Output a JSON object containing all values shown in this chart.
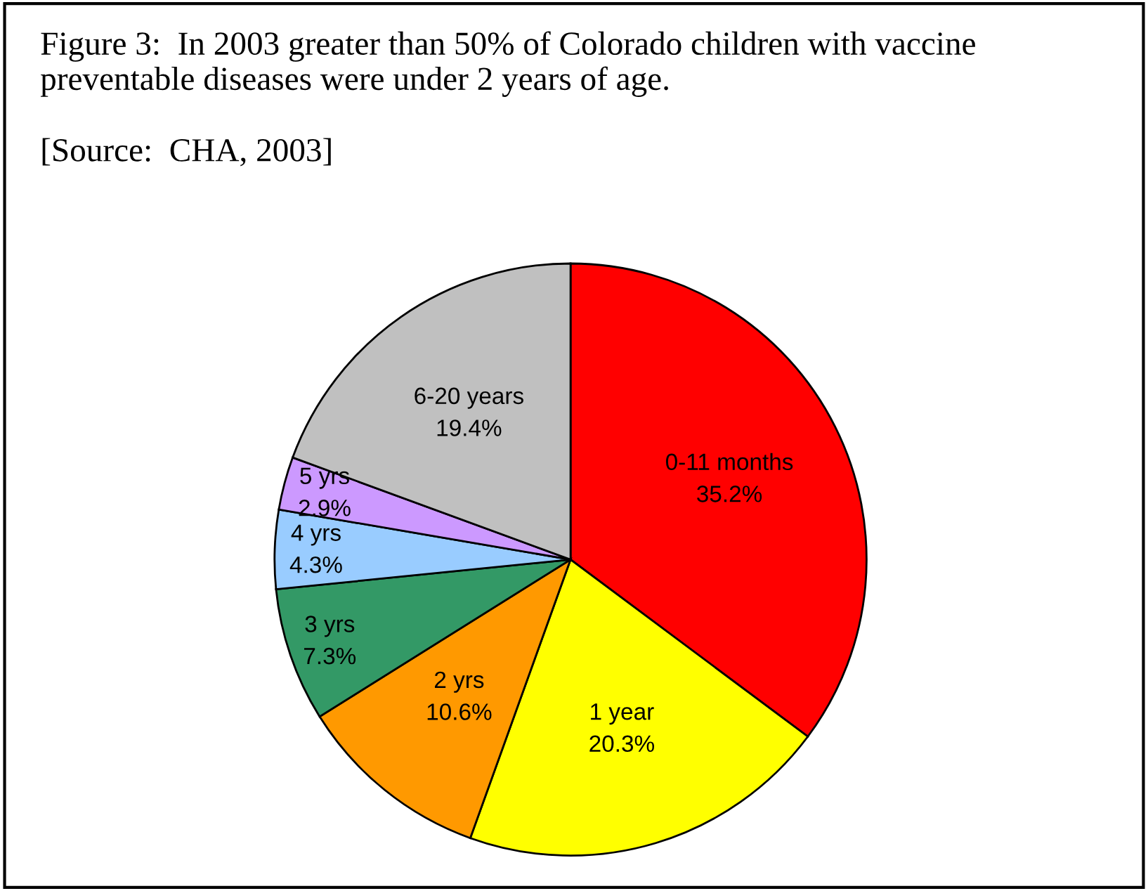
{
  "chart_data": {
    "type": "pie",
    "title": "Figure 3:  In 2003 greater than 50% of Colorado children with vaccine preventable diseases were under 2 years of age.",
    "annotations": [
      "[Source:  CHA, 2003]"
    ],
    "categories": [
      "0-11 months",
      "1 year",
      "2 yrs",
      "3 yrs",
      "4 yrs",
      "5 yrs",
      "6-20 years"
    ],
    "values": [
      35.2,
      20.3,
      10.6,
      7.3,
      4.3,
      2.9,
      19.4
    ],
    "value_labels": [
      "35.2%",
      "20.3%",
      "10.6%",
      "7.3%",
      "4.3%",
      "2.9%",
      "19.4%"
    ],
    "colors": [
      "#ff0000",
      "#ffff00",
      "#ff9900",
      "#339966",
      "#99ccff",
      "#cc99ff",
      "#c0c0c0"
    ],
    "legend": false
  }
}
